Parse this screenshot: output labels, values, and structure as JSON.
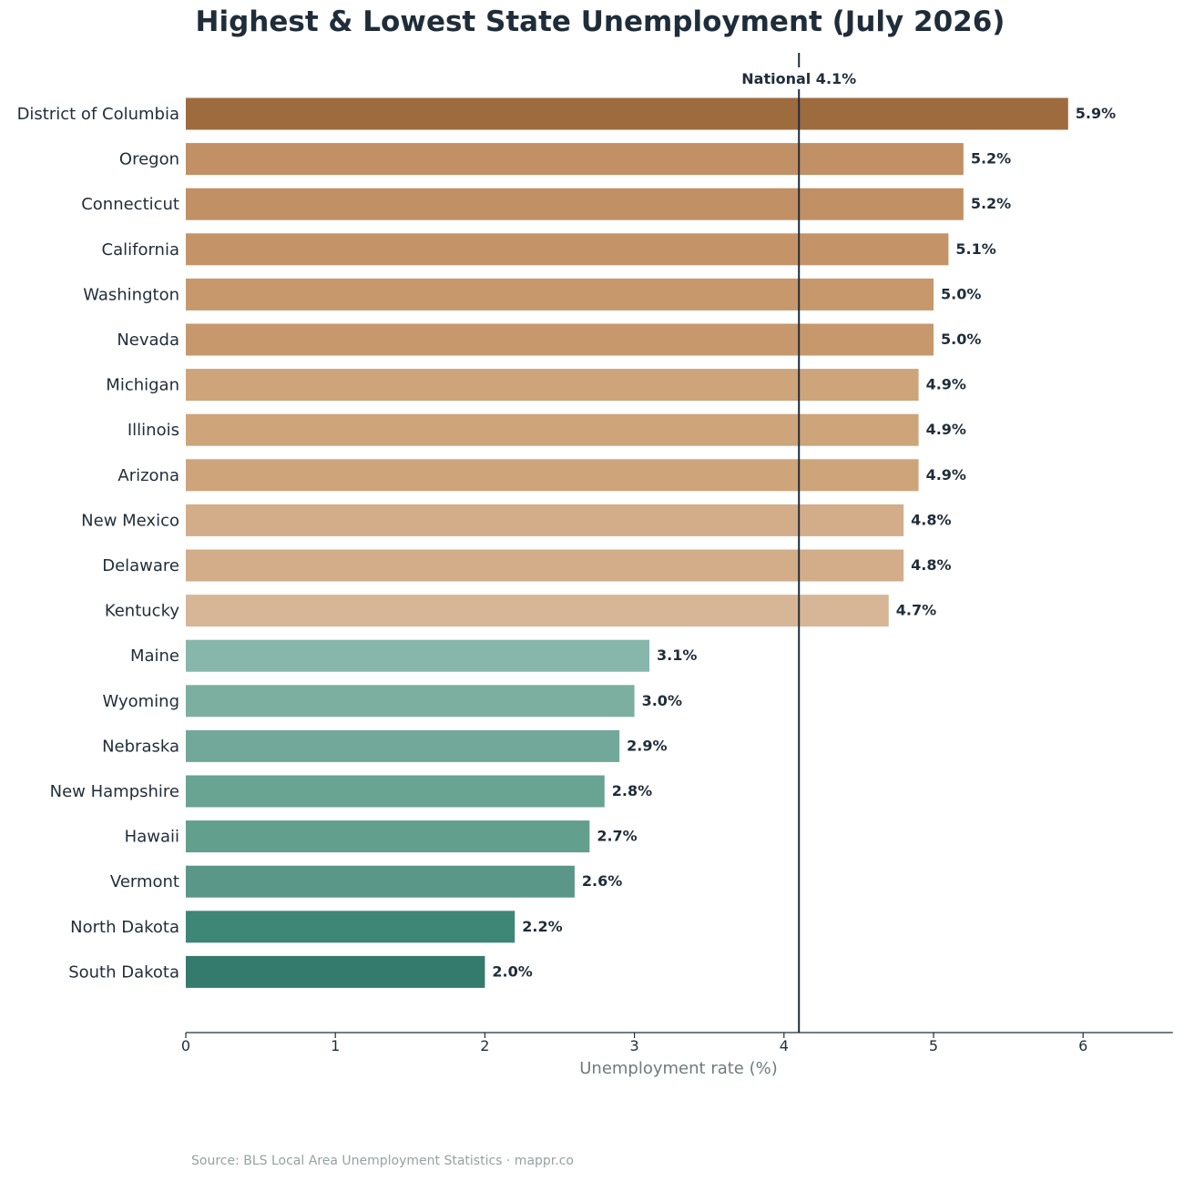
{
  "title": "Highest & Lowest State Unemployment (July 2026)",
  "source": "Source: BLS Local Area Unemployment Statistics · mappr.co",
  "chart_data": {
    "type": "bar",
    "orientation": "horizontal",
    "title": "Highest & Lowest State Unemployment (July 2026)",
    "xlabel": "Unemployment rate (%)",
    "ylabel": "",
    "xlim": [
      0,
      6.6
    ],
    "xticks": [
      "0",
      "1",
      "2",
      "3",
      "4",
      "5",
      "6"
    ],
    "grid": false,
    "reference_line": {
      "value": 4.1,
      "label": "National 4.1%",
      "color": "#1f2d3a"
    },
    "categories": [
      "District of Columbia",
      "Oregon",
      "Connecticut",
      "California",
      "Washington",
      "Nevada",
      "Michigan",
      "Illinois",
      "Arizona",
      "New Mexico",
      "Delaware",
      "Kentucky",
      "Maine",
      "Wyoming",
      "Nebraska",
      "New Hampshire",
      "Hawaii",
      "Vermont",
      "North Dakota",
      "South Dakota"
    ],
    "values": [
      5.9,
      5.2,
      5.2,
      5.1,
      5.0,
      5.0,
      4.9,
      4.9,
      4.9,
      4.8,
      4.8,
      4.7,
      3.1,
      3.0,
      2.9,
      2.8,
      2.7,
      2.6,
      2.2,
      2.0
    ],
    "value_labels": [
      "5.9%",
      "5.2%",
      "5.2%",
      "5.1%",
      "5.0%",
      "5.0%",
      "4.9%",
      "4.9%",
      "4.9%",
      "4.8%",
      "4.8%",
      "4.7%",
      "3.1%",
      "3.0%",
      "2.9%",
      "2.8%",
      "2.7%",
      "2.6%",
      "2.2%",
      "2.0%"
    ],
    "colors": [
      "#9e6b3f",
      "#c19064",
      "#c19064",
      "#c49468",
      "#c6986b",
      "#c6986b",
      "#cea47b",
      "#cea47b",
      "#cea47b",
      "#d3ad8a",
      "#d3ad8a",
      "#d7b697",
      "#87b6aa",
      "#7caf9f",
      "#71a899",
      "#69a392",
      "#629f8c",
      "#5a9789",
      "#3e8676",
      "#347a6d"
    ]
  }
}
